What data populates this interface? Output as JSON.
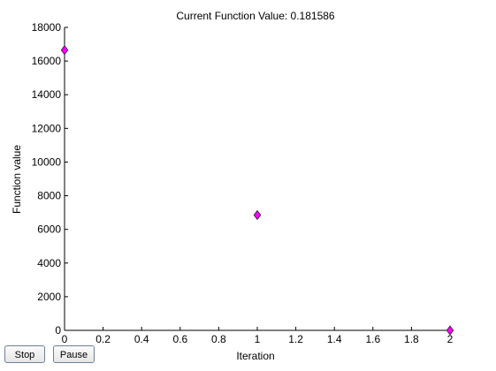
{
  "buttons": {
    "stop_label": "Stop",
    "pause_label": "Pause"
  },
  "colors": {
    "marker_fill": "#ff00ff",
    "marker_edge": "#222222",
    "axis": "#000000",
    "background": "#ffffff"
  },
  "chart_data": {
    "type": "scatter",
    "title": "Current Function Value: 0.181586",
    "xlabel": "Iteration",
    "ylabel": "Function value",
    "xlim": [
      0,
      2
    ],
    "ylim": [
      0,
      18000
    ],
    "x_ticks": [
      "0",
      "0.2",
      "0.4",
      "0.6",
      "0.8",
      "1",
      "1.2",
      "1.4",
      "1.6",
      "1.8",
      "2"
    ],
    "y_ticks": [
      "0",
      "2000",
      "4000",
      "6000",
      "8000",
      "10000",
      "12000",
      "14000",
      "16000",
      "18000"
    ],
    "grid": false,
    "marker": "diamond",
    "series": [
      {
        "x": [
          0,
          1,
          2
        ],
        "y": [
          16650,
          6850,
          0.181586
        ]
      }
    ]
  }
}
